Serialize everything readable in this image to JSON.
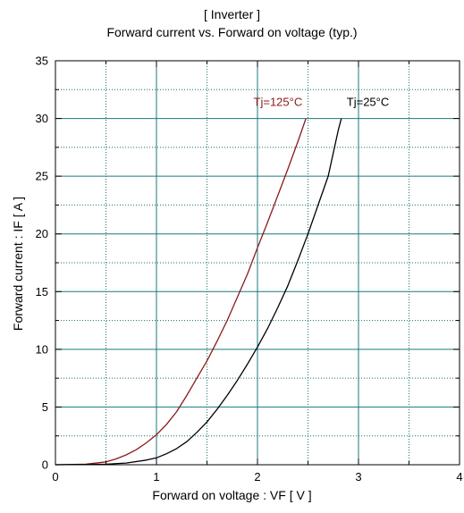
{
  "chart_data": {
    "type": "line",
    "title": "[ Inverter ]",
    "subtitle": "Forward current  vs.  Forward on voltage  (typ.)",
    "xlabel": "Forward on voltage : VF [ V ]",
    "ylabel": "Forward current : IF [ A ]",
    "xlim": [
      0,
      4
    ],
    "ylim": [
      0,
      35
    ],
    "xticks": [
      0,
      1,
      2,
      3,
      4
    ],
    "yticks": [
      0,
      5,
      10,
      15,
      20,
      25,
      30,
      35
    ],
    "grid": true,
    "series": [
      {
        "name": "Tj=125°C",
        "color": "#8b1a1a",
        "x": [
          0.0,
          0.3,
          0.5,
          0.6,
          0.7,
          0.8,
          0.9,
          1.0,
          1.1,
          1.2,
          1.3,
          1.4,
          1.5,
          1.6,
          1.7,
          1.8,
          1.9,
          2.0,
          2.1,
          2.2,
          2.3,
          2.4,
          2.48
        ],
        "y": [
          0.0,
          0.05,
          0.25,
          0.5,
          0.85,
          1.3,
          1.9,
          2.6,
          3.5,
          4.6,
          6.0,
          7.5,
          9.0,
          10.7,
          12.5,
          14.5,
          16.5,
          18.8,
          21.0,
          23.3,
          25.6,
          28.0,
          30.0
        ]
      },
      {
        "name": "Tj=25°C",
        "color": "#000000",
        "x": [
          0.0,
          0.5,
          0.7,
          0.9,
          1.0,
          1.1,
          1.2,
          1.3,
          1.4,
          1.5,
          1.6,
          1.7,
          1.8,
          1.9,
          2.0,
          2.1,
          2.2,
          2.3,
          2.4,
          2.5,
          2.6,
          2.7,
          2.8,
          2.83
        ],
        "y": [
          0.0,
          0.05,
          0.15,
          0.4,
          0.6,
          0.95,
          1.4,
          2.0,
          2.8,
          3.7,
          4.8,
          6.0,
          7.3,
          8.7,
          10.2,
          11.8,
          13.6,
          15.5,
          17.7,
          20.0,
          22.5,
          25.0,
          29.0,
          30.0
        ]
      }
    ]
  }
}
